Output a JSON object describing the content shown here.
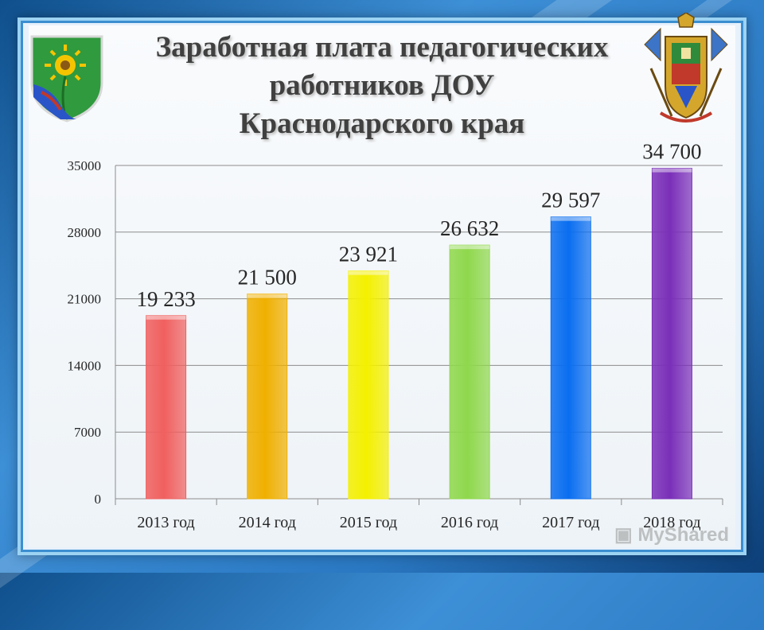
{
  "title_lines": [
    "Заработная плата педагогических",
    "работников ДОУ",
    "Краснодарского края"
  ],
  "watermark": "MyShared",
  "icons": {
    "left_emblem": "municipal-coat-of-arms-icon",
    "right_emblem": "krasnodar-krai-coat-of-arms-icon",
    "watermark": "presentation-screen-icon"
  },
  "chart_data": {
    "type": "bar",
    "title": "",
    "xlabel": "",
    "ylabel": "",
    "categories": [
      "2013 год",
      "2014 год",
      "2015 год",
      "2016 год",
      "2017 год",
      "2018 год"
    ],
    "values": [
      19233,
      21500,
      23921,
      26632,
      29597,
      34700
    ],
    "data_labels": [
      "19 233",
      "21 500",
      "23 921",
      "26 632",
      "29 597",
      "34 700"
    ],
    "ylim": [
      0,
      35000
    ],
    "yticks": [
      0,
      7000,
      14000,
      21000,
      28000,
      35000
    ],
    "grid": true,
    "legend": "none",
    "colors": [
      "#f0605f",
      "#f0b000",
      "#f4f000",
      "#8fd84c",
      "#0a6ef0",
      "#7a2fb8"
    ]
  }
}
